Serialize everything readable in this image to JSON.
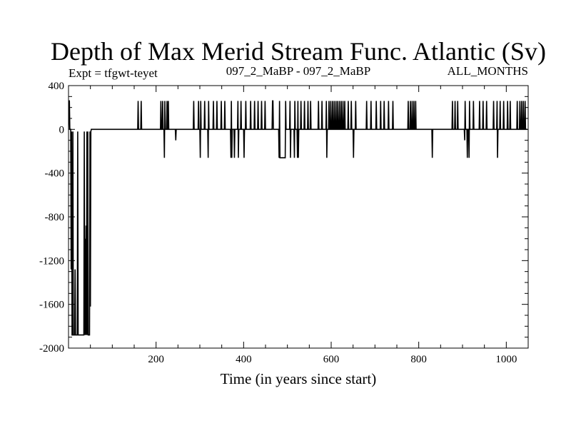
{
  "chart_data": {
    "type": "line",
    "title": "Depth of Max Merid Stream Func. Atlantic (Sv)",
    "subtitle_left": "Expt = tfgwt-teyet",
    "subtitle_center": "097_2_MaBP - 097_2_MaBP",
    "subtitle_right": "ALL_MONTHS",
    "xlabel": "Time (in years since start)",
    "ylabel": "",
    "xlim": [
      0,
      1050
    ],
    "ylim": [
      -2000,
      400
    ],
    "x_ticks": [
      200,
      400,
      600,
      800,
      1000
    ],
    "y_ticks": [
      400,
      0,
      -400,
      -800,
      -1200,
      -1600,
      -2000
    ],
    "x_tick_labels": [
      "200",
      "400",
      "600",
      "800",
      "1000"
    ],
    "y_tick_labels": [
      "400",
      "0",
      "-400",
      "-800",
      "-1200",
      "-1600",
      "-2000"
    ],
    "grid": false,
    "line_color": "#000000",
    "series": [
      {
        "points": [
          [
            0,
            0
          ],
          [
            1,
            260
          ],
          [
            2,
            260
          ],
          [
            3,
            0
          ],
          [
            5,
            0
          ],
          [
            6,
            -1280
          ],
          [
            7,
            -20
          ],
          [
            8,
            -1880
          ],
          [
            9,
            -1880
          ],
          [
            10,
            -20
          ],
          [
            11,
            -1880
          ],
          [
            14,
            -1880
          ],
          [
            15,
            -1280
          ],
          [
            16,
            -1880
          ],
          [
            20,
            -1880
          ],
          [
            21,
            -20
          ],
          [
            22,
            -1880
          ],
          [
            35,
            -1880
          ],
          [
            36,
            -20
          ],
          [
            37,
            -1880
          ],
          [
            38,
            -1000
          ],
          [
            39,
            -1880
          ],
          [
            40,
            -880
          ],
          [
            41,
            -1880
          ],
          [
            42,
            -20
          ],
          [
            43,
            -1880
          ],
          [
            44,
            -20
          ],
          [
            45,
            -1880
          ],
          [
            48,
            -1880
          ],
          [
            49,
            -20
          ],
          [
            50,
            -1620
          ],
          [
            51,
            -20
          ],
          [
            52,
            0
          ],
          [
            158,
            0
          ],
          [
            159,
            260
          ],
          [
            160,
            0
          ],
          [
            165,
            0
          ],
          [
            166,
            260
          ],
          [
            167,
            0
          ],
          [
            210,
            0
          ],
          [
            211,
            260
          ],
          [
            212,
            0
          ],
          [
            214,
            0
          ],
          [
            215,
            260
          ],
          [
            216,
            0
          ],
          [
            218,
            0
          ],
          [
            219,
            -260
          ],
          [
            220,
            260
          ],
          [
            221,
            0
          ],
          [
            224,
            0
          ],
          [
            225,
            260
          ],
          [
            226,
            0
          ],
          [
            227,
            0
          ],
          [
            228,
            260
          ],
          [
            229,
            0
          ],
          [
            244,
            0
          ],
          [
            245,
            -100
          ],
          [
            246,
            0
          ],
          [
            285,
            0
          ],
          [
            286,
            260
          ],
          [
            287,
            0
          ],
          [
            296,
            0
          ],
          [
            297,
            260
          ],
          [
            298,
            0
          ],
          [
            300,
            0
          ],
          [
            301,
            -260
          ],
          [
            302,
            260
          ],
          [
            303,
            0
          ],
          [
            310,
            0
          ],
          [
            311,
            260
          ],
          [
            312,
            0
          ],
          [
            318,
            0
          ],
          [
            319,
            -260
          ],
          [
            320,
            260
          ],
          [
            321,
            0
          ],
          [
            330,
            0
          ],
          [
            331,
            260
          ],
          [
            332,
            0
          ],
          [
            338,
            0
          ],
          [
            339,
            260
          ],
          [
            340,
            0
          ],
          [
            348,
            0
          ],
          [
            349,
            260
          ],
          [
            350,
            0
          ],
          [
            356,
            0
          ],
          [
            357,
            260
          ],
          [
            358,
            0
          ],
          [
            370,
            0
          ],
          [
            371,
            -260
          ],
          [
            372,
            260
          ],
          [
            373,
            -260
          ],
          [
            374,
            0
          ],
          [
            378,
            0
          ],
          [
            379,
            -260
          ],
          [
            380,
            0
          ],
          [
            386,
            0
          ],
          [
            387,
            260
          ],
          [
            388,
            -260
          ],
          [
            389,
            0
          ],
          [
            393,
            0
          ],
          [
            394,
            260
          ],
          [
            395,
            0
          ],
          [
            400,
            0
          ],
          [
            401,
            -260
          ],
          [
            402,
            0
          ],
          [
            404,
            0
          ],
          [
            405,
            260
          ],
          [
            406,
            0
          ],
          [
            415,
            0
          ],
          [
            416,
            260
          ],
          [
            417,
            0
          ],
          [
            424,
            0
          ],
          [
            425,
            260
          ],
          [
            426,
            0
          ],
          [
            432,
            0
          ],
          [
            433,
            260
          ],
          [
            434,
            0
          ],
          [
            440,
            0
          ],
          [
            441,
            260
          ],
          [
            442,
            0
          ],
          [
            448,
            0
          ],
          [
            449,
            260
          ],
          [
            450,
            0
          ],
          [
            465,
            0
          ],
          [
            466,
            260
          ],
          [
            467,
            260
          ],
          [
            468,
            0
          ],
          [
            480,
            0
          ],
          [
            481,
            -260
          ],
          [
            482,
            260
          ],
          [
            483,
            -260
          ],
          [
            495,
            -260
          ],
          [
            496,
            260
          ],
          [
            497,
            0
          ],
          [
            505,
            0
          ],
          [
            506,
            260
          ],
          [
            507,
            -260
          ],
          [
            508,
            0
          ],
          [
            515,
            0
          ],
          [
            516,
            -260
          ],
          [
            517,
            260
          ],
          [
            518,
            0
          ],
          [
            522,
            0
          ],
          [
            523,
            -260
          ],
          [
            524,
            260
          ],
          [
            525,
            -260
          ],
          [
            526,
            0
          ],
          [
            530,
            0
          ],
          [
            531,
            260
          ],
          [
            532,
            0
          ],
          [
            538,
            0
          ],
          [
            539,
            260
          ],
          [
            540,
            0
          ],
          [
            546,
            0
          ],
          [
            547,
            260
          ],
          [
            548,
            0
          ],
          [
            552,
            0
          ],
          [
            553,
            260
          ],
          [
            554,
            0
          ],
          [
            570,
            0
          ],
          [
            571,
            260
          ],
          [
            572,
            0
          ],
          [
            578,
            0
          ],
          [
            579,
            260
          ],
          [
            580,
            0
          ],
          [
            588,
            0
          ],
          [
            589,
            260
          ],
          [
            590,
            -260
          ],
          [
            591,
            0
          ],
          [
            594,
            0
          ],
          [
            595,
            260
          ],
          [
            596,
            0
          ],
          [
            598,
            0
          ],
          [
            599,
            260
          ],
          [
            600,
            0
          ],
          [
            602,
            0
          ],
          [
            603,
            260
          ],
          [
            604,
            0
          ],
          [
            606,
            0
          ],
          [
            607,
            260
          ],
          [
            608,
            0
          ],
          [
            610,
            0
          ],
          [
            611,
            260
          ],
          [
            612,
            0
          ],
          [
            614,
            0
          ],
          [
            615,
            260
          ],
          [
            616,
            0
          ],
          [
            618,
            0
          ],
          [
            619,
            260
          ],
          [
            620,
            0
          ],
          [
            622,
            0
          ],
          [
            623,
            260
          ],
          [
            624,
            0
          ],
          [
            626,
            0
          ],
          [
            627,
            260
          ],
          [
            628,
            0
          ],
          [
            630,
            0
          ],
          [
            631,
            260
          ],
          [
            632,
            0
          ],
          [
            638,
            0
          ],
          [
            639,
            260
          ],
          [
            640,
            0
          ],
          [
            645,
            0
          ],
          [
            646,
            260
          ],
          [
            647,
            0
          ],
          [
            650,
            0
          ],
          [
            651,
            -260
          ],
          [
            652,
            0
          ],
          [
            655,
            0
          ],
          [
            656,
            260
          ],
          [
            657,
            0
          ],
          [
            680,
            0
          ],
          [
            681,
            260
          ],
          [
            682,
            0
          ],
          [
            690,
            0
          ],
          [
            691,
            260
          ],
          [
            692,
            0
          ],
          [
            702,
            0
          ],
          [
            703,
            260
          ],
          [
            704,
            0
          ],
          [
            712,
            0
          ],
          [
            713,
            260
          ],
          [
            714,
            0
          ],
          [
            720,
            0
          ],
          [
            721,
            260
          ],
          [
            722,
            0
          ],
          [
            730,
            0
          ],
          [
            731,
            260
          ],
          [
            732,
            0
          ],
          [
            740,
            0
          ],
          [
            741,
            260
          ],
          [
            742,
            0
          ],
          [
            775,
            0
          ],
          [
            776,
            260
          ],
          [
            777,
            0
          ],
          [
            780,
            0
          ],
          [
            781,
            260
          ],
          [
            782,
            0
          ],
          [
            784,
            0
          ],
          [
            785,
            260
          ],
          [
            786,
            0
          ],
          [
            788,
            0
          ],
          [
            789,
            260
          ],
          [
            790,
            0
          ],
          [
            792,
            0
          ],
          [
            793,
            260
          ],
          [
            794,
            0
          ],
          [
            830,
            0
          ],
          [
            831,
            -260
          ],
          [
            832,
            0
          ],
          [
            876,
            0
          ],
          [
            877,
            260
          ],
          [
            878,
            0
          ],
          [
            882,
            0
          ],
          [
            883,
            260
          ],
          [
            884,
            0
          ],
          [
            888,
            0
          ],
          [
            889,
            260
          ],
          [
            890,
            0
          ],
          [
            904,
            0
          ],
          [
            905,
            -100
          ],
          [
            906,
            260
          ],
          [
            907,
            0
          ],
          [
            910,
            0
          ],
          [
            911,
            -260
          ],
          [
            912,
            0
          ],
          [
            914,
            0
          ],
          [
            915,
            -260
          ],
          [
            916,
            260
          ],
          [
            917,
            0
          ],
          [
            924,
            0
          ],
          [
            925,
            260
          ],
          [
            926,
            0
          ],
          [
            938,
            0
          ],
          [
            939,
            260
          ],
          [
            940,
            0
          ],
          [
            946,
            0
          ],
          [
            947,
            260
          ],
          [
            948,
            0
          ],
          [
            954,
            0
          ],
          [
            955,
            260
          ],
          [
            956,
            0
          ],
          [
            970,
            0
          ],
          [
            971,
            260
          ],
          [
            972,
            0
          ],
          [
            978,
            0
          ],
          [
            979,
            260
          ],
          [
            980,
            -260
          ],
          [
            981,
            0
          ],
          [
            985,
            0
          ],
          [
            986,
            260
          ],
          [
            987,
            0
          ],
          [
            993,
            0
          ],
          [
            994,
            260
          ],
          [
            995,
            0
          ],
          [
            1002,
            0
          ],
          [
            1003,
            260
          ],
          [
            1004,
            0
          ],
          [
            1008,
            0
          ],
          [
            1009,
            260
          ],
          [
            1010,
            0
          ],
          [
            1024,
            0
          ],
          [
            1025,
            260
          ],
          [
            1026,
            0
          ],
          [
            1030,
            0
          ],
          [
            1031,
            260
          ],
          [
            1032,
            0
          ],
          [
            1034,
            0
          ],
          [
            1035,
            260
          ],
          [
            1036,
            0
          ],
          [
            1038,
            0
          ],
          [
            1039,
            260
          ],
          [
            1040,
            0
          ],
          [
            1042,
            0
          ],
          [
            1043,
            260
          ],
          [
            1044,
            0
          ],
          [
            1048,
            0
          ]
        ]
      }
    ]
  }
}
